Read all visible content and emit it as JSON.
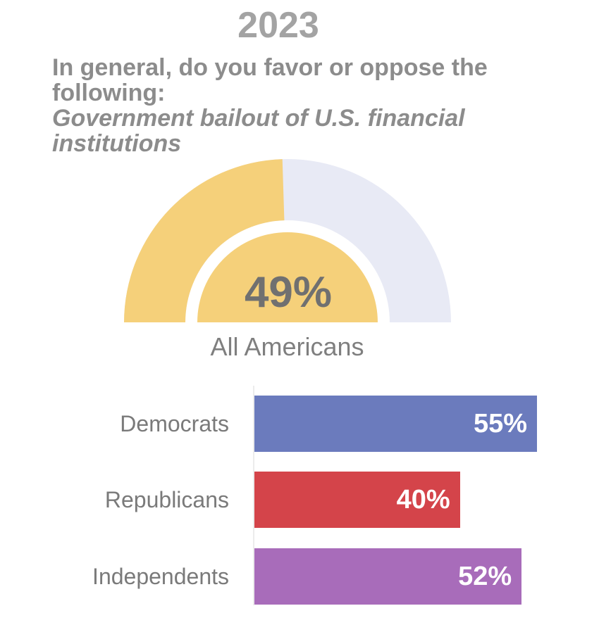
{
  "header": {
    "year": "2023",
    "question": "In general, do you favor or oppose the following:",
    "item": "Government bailout of U.S. financial institutions"
  },
  "colors": {
    "favor": "#f5d07a",
    "remainder": "#e8eaf5",
    "democrats": "#6b7bbd",
    "republicans": "#d4444a",
    "independents": "#a86cba"
  },
  "chart_data": [
    {
      "type": "pie",
      "style": "half-donut gauge",
      "value": 49,
      "max": 100,
      "value_label": "49%",
      "label": "All Americans"
    },
    {
      "type": "bar",
      "orientation": "horizontal",
      "categories": [
        "Democrats",
        "Republicans",
        "Independents"
      ],
      "values": [
        55,
        40,
        52
      ],
      "value_labels": [
        "55%",
        "40%",
        "52%"
      ],
      "xlim": [
        0,
        60
      ]
    }
  ]
}
